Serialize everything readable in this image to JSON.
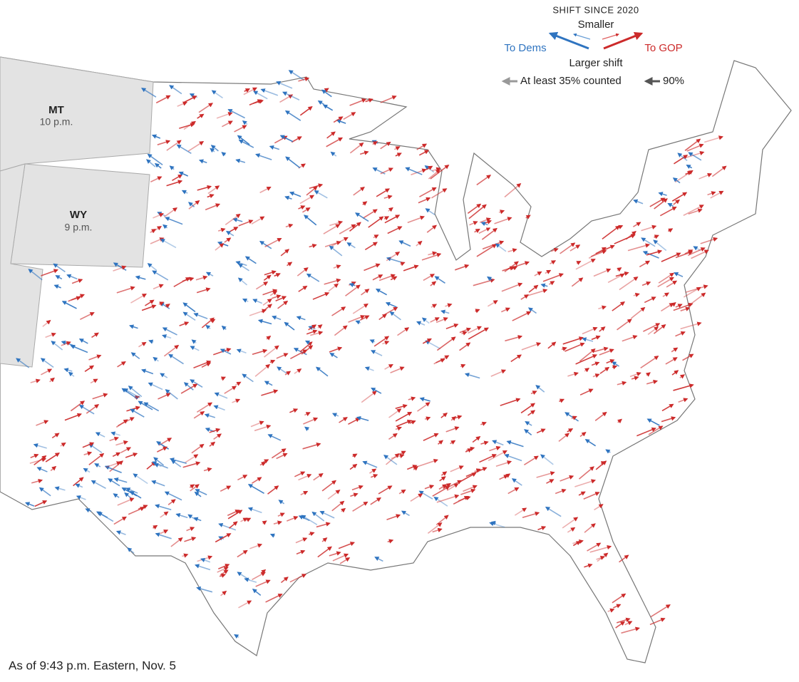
{
  "legend": {
    "title": "SHIFT SINCE 2020",
    "smaller": "Smaller",
    "to_dems": "To Dems",
    "to_gop": "To GOP",
    "larger": "Larger shift",
    "counted_low": "At least 35% counted",
    "counted_high": "90%"
  },
  "states": [
    {
      "abbr": "MT",
      "time": "10 p.m."
    },
    {
      "abbr": "WY",
      "time": "9 p.m."
    }
  ],
  "footnote": "As of 9:43 p.m. Eastern, Nov. 5"
}
